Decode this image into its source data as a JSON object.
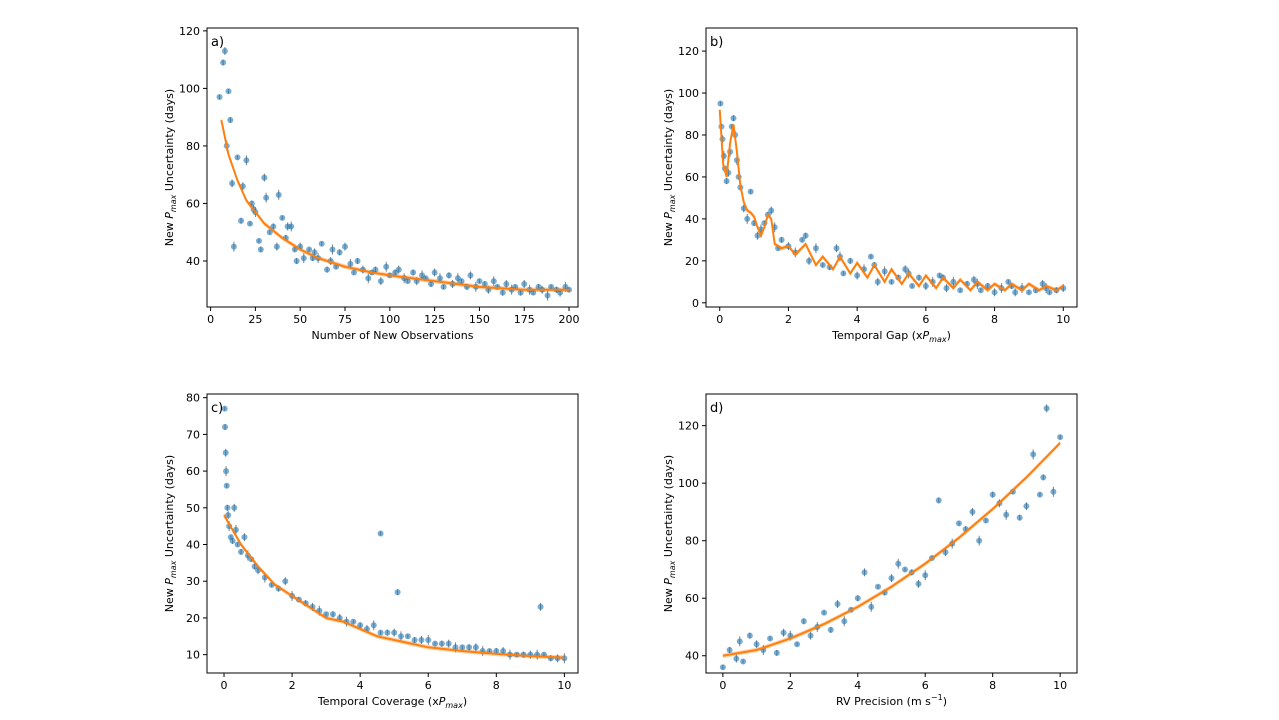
{
  "chart_data": [
    {
      "id": "a",
      "type": "scatter",
      "panel_label": "a)",
      "xlabel": "Number of New Observations",
      "ylabel_prefix": "New ",
      "ylabel_symbol": "P",
      "ylabel_sub": "max",
      "ylabel_suffix": " Uncertainty (days)",
      "xlim": [
        -2,
        205
      ],
      "ylim": [
        24,
        121
      ],
      "xticks": [
        0,
        25,
        50,
        75,
        100,
        125,
        150,
        175,
        200
      ],
      "yticks": [
        40,
        60,
        80,
        100,
        120
      ],
      "x": [
        5,
        7,
        8,
        9,
        10,
        11,
        12,
        13,
        15,
        17,
        18,
        20,
        22,
        23,
        24,
        25,
        27,
        28,
        30,
        31,
        33,
        35,
        37,
        38,
        40,
        42,
        43,
        45,
        47,
        48,
        50,
        52,
        55,
        57,
        58,
        60,
        62,
        65,
        67,
        68,
        70,
        72,
        75,
        78,
        80,
        82,
        85,
        88,
        90,
        92,
        95,
        98,
        100,
        103,
        105,
        108,
        110,
        113,
        115,
        118,
        120,
        123,
        125,
        128,
        130,
        133,
        135,
        138,
        140,
        143,
        145,
        148,
        150,
        153,
        155,
        158,
        160,
        163,
        165,
        168,
        170,
        173,
        175,
        178,
        180,
        183,
        185,
        188,
        190,
        193,
        195,
        198,
        200
      ],
      "y": [
        97,
        109,
        113,
        80,
        99,
        89,
        67,
        45,
        76,
        54,
        66,
        75,
        53,
        60,
        58,
        57,
        47,
        44,
        69,
        62,
        50,
        52,
        45,
        63,
        55,
        48,
        52,
        52,
        44,
        40,
        45,
        41,
        44,
        41,
        43,
        41,
        46,
        37,
        40,
        44,
        38,
        43,
        45,
        39,
        36,
        40,
        37,
        34,
        36,
        37,
        33,
        38,
        35,
        36,
        37,
        34,
        33,
        36,
        33,
        35,
        34,
        32,
        36,
        34,
        31,
        35,
        32,
        34,
        33,
        31,
        35,
        31,
        33,
        32,
        30,
        33,
        31,
        29,
        32,
        30,
        31,
        29,
        32,
        30,
        29,
        31,
        30,
        28,
        31,
        30,
        29,
        31,
        30
      ],
      "fit": {
        "x": [
          6,
          10,
          15,
          20,
          25,
          30,
          40,
          50,
          60,
          75,
          90,
          100,
          125,
          150,
          175,
          200
        ],
        "y": [
          89,
          77,
          68,
          61,
          57,
          53,
          48,
          44,
          41,
          38,
          36,
          35,
          33,
          31,
          30,
          30
        ]
      }
    },
    {
      "id": "b",
      "type": "scatter",
      "panel_label": "b)",
      "xlabel_prefix": "Temporal Gap (x",
      "xlabel_symbol": "P",
      "xlabel_sub": "max",
      "xlabel_suffix": ")",
      "ylabel_prefix": "New ",
      "ylabel_symbol": "P",
      "ylabel_sub": "max",
      "ylabel_suffix": " Uncertainty (days)",
      "xlim": [
        -0.4,
        10.4
      ],
      "ylim": [
        -2,
        131
      ],
      "xticks": [
        0,
        2,
        4,
        6,
        8,
        10
      ],
      "yticks": [
        0,
        20,
        40,
        60,
        80,
        100,
        120
      ],
      "x": [
        0.02,
        0.05,
        0.08,
        0.12,
        0.15,
        0.2,
        0.25,
        0.3,
        0.35,
        0.4,
        0.45,
        0.5,
        0.55,
        0.6,
        0.7,
        0.8,
        0.9,
        1.0,
        1.1,
        1.2,
        1.3,
        1.4,
        1.5,
        1.6,
        1.7,
        1.8,
        2.0,
        2.2,
        2.4,
        2.5,
        2.6,
        2.8,
        3.0,
        3.2,
        3.4,
        3.5,
        3.6,
        3.8,
        4.0,
        4.2,
        4.4,
        4.5,
        4.6,
        4.8,
        5.0,
        5.2,
        5.4,
        5.5,
        5.6,
        5.8,
        6.0,
        6.2,
        6.4,
        6.5,
        6.6,
        6.8,
        7.0,
        7.2,
        7.4,
        7.5,
        7.6,
        7.8,
        8.0,
        8.2,
        8.4,
        8.5,
        8.6,
        8.8,
        9.0,
        9.2,
        9.4,
        9.5,
        9.6,
        9.8,
        10.0
      ],
      "y": [
        95,
        84,
        78,
        70,
        64,
        58,
        62,
        72,
        84,
        88,
        80,
        68,
        60,
        55,
        45,
        40,
        53,
        38,
        32,
        35,
        38,
        42,
        44,
        36,
        26,
        30,
        27,
        24,
        30,
        32,
        20,
        26,
        18,
        17,
        26,
        22,
        14,
        20,
        13,
        16,
        22,
        18,
        10,
        15,
        10,
        12,
        16,
        14,
        8,
        12,
        8,
        10,
        13,
        12,
        7,
        10,
        6,
        9,
        11,
        9,
        6,
        8,
        5,
        7,
        10,
        8,
        5,
        7,
        5,
        6,
        9,
        7,
        5,
        6,
        7
      ],
      "fit": {
        "x": [
          0,
          0.1,
          0.2,
          0.3,
          0.4,
          0.5,
          0.6,
          0.7,
          0.8,
          0.9,
          1.0,
          1.1,
          1.2,
          1.3,
          1.4,
          1.5,
          1.6,
          1.8,
          2.0,
          2.2,
          2.5,
          2.8,
          3.0,
          3.3,
          3.5,
          3.8,
          4.0,
          4.3,
          4.5,
          4.8,
          5.0,
          5.3,
          5.5,
          5.8,
          6.0,
          6.3,
          6.5,
          6.8,
          7.0,
          7.3,
          7.5,
          7.8,
          8.0,
          8.3,
          8.5,
          8.8,
          9.0,
          9.3,
          9.5,
          9.8,
          10.0
        ],
        "y": [
          92,
          66,
          60,
          76,
          85,
          72,
          56,
          48,
          44,
          43,
          41,
          36,
          32,
          36,
          42,
          40,
          28,
          26,
          27,
          23,
          28,
          18,
          22,
          16,
          22,
          14,
          19,
          12,
          18,
          10,
          16,
          9,
          14,
          8,
          13,
          7,
          12,
          7,
          11,
          6,
          10,
          6,
          9,
          6,
          9,
          6,
          9,
          6,
          8,
          6,
          8
        ]
      }
    },
    {
      "id": "c",
      "type": "scatter",
      "panel_label": "c)",
      "xlabel_prefix": "Temporal Coverage (x",
      "xlabel_symbol": "P",
      "xlabel_sub": "max",
      "xlabel_suffix": ")",
      "ylabel_prefix": "New ",
      "ylabel_symbol": "P",
      "ylabel_sub": "max",
      "ylabel_suffix": " Uncertainty (days)",
      "xlim": [
        -0.5,
        10.4
      ],
      "ylim": [
        5,
        81
      ],
      "xticks": [
        0,
        2,
        4,
        6,
        8,
        10
      ],
      "yticks": [
        10,
        20,
        30,
        40,
        50,
        60,
        70,
        80
      ],
      "x": [
        0.02,
        0.03,
        0.05,
        0.06,
        0.08,
        0.1,
        0.12,
        0.15,
        0.2,
        0.25,
        0.3,
        0.35,
        0.4,
        0.5,
        0.6,
        0.7,
        0.8,
        0.9,
        1.0,
        1.2,
        1.4,
        1.6,
        1.8,
        2.0,
        2.2,
        2.4,
        2.6,
        2.8,
        3.0,
        3.2,
        3.4,
        3.6,
        3.8,
        4.0,
        4.2,
        4.4,
        4.6,
        4.8,
        5.0,
        5.2,
        5.4,
        5.6,
        5.8,
        6.0,
        6.2,
        6.4,
        6.6,
        6.8,
        7.0,
        7.2,
        7.4,
        7.6,
        7.8,
        8.0,
        8.2,
        8.4,
        8.6,
        8.8,
        9.0,
        9.2,
        9.4,
        9.6,
        9.8,
        10.0,
        4.6,
        5.1,
        9.3
      ],
      "y": [
        77,
        72,
        65,
        60,
        56,
        50,
        48,
        45,
        42,
        41,
        50,
        44,
        40,
        38,
        42,
        37,
        36,
        34,
        33,
        31,
        29,
        28,
        30,
        26,
        25,
        24,
        23,
        22,
        21,
        21,
        20,
        19,
        19,
        18,
        17,
        18,
        16,
        16,
        16,
        15,
        15,
        14,
        14,
        14,
        13,
        13,
        13,
        12,
        12,
        12,
        12,
        11,
        11,
        11,
        11,
        10,
        10,
        10,
        10,
        10,
        10,
        9,
        9,
        9,
        43,
        27,
        23
      ],
      "fit": {
        "x": [
          0,
          0.25,
          0.5,
          0.75,
          1,
          1.5,
          2,
          2.5,
          3,
          3.5,
          4,
          4.5,
          5,
          5.5,
          6,
          6.5,
          7,
          7.5,
          8,
          8.5,
          9,
          9.5,
          10
        ],
        "y": [
          48,
          44,
          40,
          37,
          34,
          29,
          26,
          23,
          20,
          19,
          17,
          15,
          14,
          13,
          12,
          11.5,
          11,
          10.6,
          10.2,
          9.9,
          9.6,
          9.4,
          9.2
        ]
      }
    },
    {
      "id": "d",
      "type": "scatter",
      "panel_label": "d)",
      "xlabel_prefix": "RV Precision (m s",
      "xlabel_sup": "−1",
      "xlabel_suffix": ")",
      "ylabel_prefix": "New ",
      "ylabel_symbol": "P",
      "ylabel_sub": "max",
      "ylabel_suffix": " Uncertainty (days)",
      "xlim": [
        -0.5,
        10.5
      ],
      "ylim": [
        34,
        131
      ],
      "xticks": [
        0,
        2,
        4,
        6,
        8,
        10
      ],
      "yticks": [
        40,
        60,
        80,
        100,
        120
      ],
      "x": [
        0,
        0.2,
        0.4,
        0.5,
        0.6,
        0.8,
        1.0,
        1.2,
        1.4,
        1.6,
        1.8,
        2.0,
        2.2,
        2.4,
        2.6,
        2.8,
        3.0,
        3.2,
        3.4,
        3.6,
        3.8,
        4.0,
        4.2,
        4.4,
        4.6,
        4.8,
        5.0,
        5.2,
        5.4,
        5.6,
        5.8,
        6.0,
        6.2,
        6.4,
        6.6,
        6.8,
        7.0,
        7.2,
        7.4,
        7.6,
        7.8,
        8.0,
        8.2,
        8.4,
        8.6,
        8.8,
        9.0,
        9.2,
        9.4,
        9.5,
        9.6,
        9.8,
        10.0
      ],
      "y": [
        36,
        42,
        39,
        45,
        38,
        47,
        44,
        42,
        46,
        41,
        48,
        47,
        44,
        52,
        47,
        50,
        55,
        49,
        58,
        52,
        56,
        60,
        69,
        57,
        64,
        62,
        67,
        72,
        70,
        69,
        65,
        68,
        74,
        94,
        76,
        79,
        86,
        84,
        90,
        80,
        87,
        96,
        93,
        89,
        97,
        88,
        92,
        110,
        96,
        102,
        126,
        97,
        116
      ],
      "fit": {
        "x": [
          0,
          1,
          2,
          3,
          4,
          5,
          6,
          7,
          8,
          9,
          10
        ],
        "y": [
          40,
          42,
          46,
          51,
          57,
          64,
          72,
          81,
          91,
          102,
          114
        ]
      }
    }
  ]
}
